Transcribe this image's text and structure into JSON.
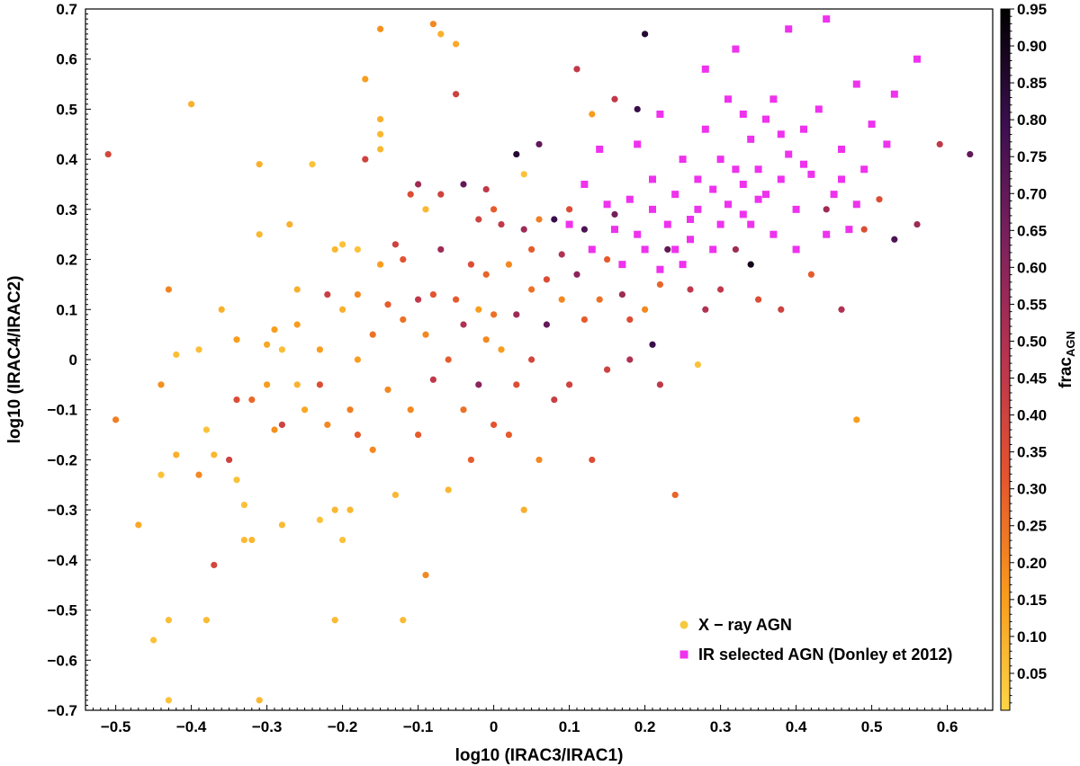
{
  "chart_data": {
    "type": "scatter",
    "title": "",
    "xlabel": "log10 (IRAC3/IRAC1)",
    "ylabel": "log10 (IRAC4/IRAC2)",
    "xlim": [
      -0.54,
      0.66
    ],
    "ylim": [
      -0.7,
      0.7
    ],
    "xticks": [
      "−0.5",
      "−0.4",
      "−0.3",
      "−0.2",
      "−0.1",
      "0",
      "0.1",
      "0.2",
      "0.3",
      "0.4",
      "0.5",
      "0.6"
    ],
    "yticks": [
      "0.7",
      "0.6",
      "0.5",
      "0.4",
      "0.3",
      "0.2",
      "0.1",
      "0",
      "−0.1",
      "−0.2",
      "−0.3",
      "−0.4",
      "−0.5",
      "−0.6",
      "−0.7"
    ],
    "grid": false,
    "legend_position": "bottom-right",
    "colorbar": {
      "label_main": "frac",
      "label_sub": "AGN",
      "range": [
        0.0,
        0.95
      ],
      "ticks": [
        "0.95",
        "0.90",
        "0.85",
        "0.80",
        "0.75",
        "0.70",
        "0.65",
        "0.60",
        "0.55",
        "0.50",
        "0.45",
        "0.40",
        "0.35",
        "0.30",
        "0.25",
        "0.20",
        "0.15",
        "0.10",
        "0.05"
      ],
      "colormap": [
        "#fcd547",
        "#f89a1c",
        "#e4542e",
        "#b9344f",
        "#7d215e",
        "#3c0f4f",
        "#000000"
      ]
    },
    "series": [
      {
        "name": "X − ray AGN",
        "marker": "circle",
        "color": "#f5c940",
        "points": [
          [
            -0.51,
            0.41,
            0.38
          ],
          [
            -0.5,
            -0.12,
            0.22
          ],
          [
            -0.47,
            -0.33,
            0.12
          ],
          [
            -0.45,
            -0.56,
            0.05
          ],
          [
            -0.44,
            -0.23,
            0.05
          ],
          [
            -0.43,
            -0.52,
            0.06
          ],
          [
            -0.43,
            -0.68,
            0.05
          ],
          [
            -0.42,
            0.01,
            0.06
          ],
          [
            -0.42,
            -0.19,
            0.1
          ],
          [
            -0.43,
            0.14,
            0.21
          ],
          [
            -0.44,
            -0.05,
            0.18
          ],
          [
            -0.4,
            0.51,
            0.1
          ],
          [
            -0.39,
            0.02,
            0.06
          ],
          [
            -0.39,
            -0.23,
            0.2
          ],
          [
            -0.38,
            -0.14,
            0.05
          ],
          [
            -0.37,
            -0.19,
            0.08
          ],
          [
            -0.38,
            -0.52,
            0.07
          ],
          [
            -0.37,
            -0.41,
            0.38
          ],
          [
            -0.36,
            0.1,
            0.1
          ],
          [
            -0.35,
            -0.2,
            0.4
          ],
          [
            -0.34,
            -0.08,
            0.35
          ],
          [
            -0.34,
            -0.24,
            0.05
          ],
          [
            -0.34,
            0.04,
            0.15
          ],
          [
            -0.33,
            -0.36,
            0.07
          ],
          [
            -0.33,
            -0.29,
            0.05
          ],
          [
            -0.32,
            -0.36,
            0.08
          ],
          [
            -0.31,
            0.25,
            0.08
          ],
          [
            -0.31,
            0.39,
            0.1
          ],
          [
            -0.31,
            -0.68,
            0.08
          ],
          [
            -0.32,
            -0.08,
            0.27
          ],
          [
            -0.3,
            -0.05,
            0.15
          ],
          [
            -0.3,
            0.03,
            0.12
          ],
          [
            -0.29,
            -0.14,
            0.18
          ],
          [
            -0.29,
            0.06,
            0.15
          ],
          [
            -0.28,
            -0.13,
            0.4
          ],
          [
            -0.28,
            -0.33,
            0.07
          ],
          [
            -0.28,
            0.02,
            0.06
          ],
          [
            -0.27,
            0.27,
            0.1
          ],
          [
            -0.26,
            0.07,
            0.15
          ],
          [
            -0.26,
            -0.05,
            0.09
          ],
          [
            -0.26,
            0.14,
            0.1
          ],
          [
            -0.25,
            -0.1,
            0.12
          ],
          [
            -0.24,
            0.39,
            0.05
          ],
          [
            -0.23,
            -0.32,
            0.05
          ],
          [
            -0.23,
            0.02,
            0.15
          ],
          [
            -0.23,
            -0.05,
            0.35
          ],
          [
            -0.22,
            0.13,
            0.42
          ],
          [
            -0.22,
            -0.13,
            0.2
          ],
          [
            -0.21,
            0.22,
            0.08
          ],
          [
            -0.21,
            -0.3,
            0.08
          ],
          [
            -0.21,
            -0.52,
            0.07
          ],
          [
            -0.2,
            0.23,
            0.05
          ],
          [
            -0.2,
            0.1,
            0.1
          ],
          [
            -0.2,
            -0.36,
            0.05
          ],
          [
            -0.19,
            -0.1,
            0.22
          ],
          [
            -0.19,
            -0.3,
            0.08
          ],
          [
            -0.18,
            0.22,
            0.05
          ],
          [
            -0.18,
            0.13,
            0.2
          ],
          [
            -0.18,
            0.0,
            0.15
          ],
          [
            -0.18,
            -0.15,
            0.3
          ],
          [
            -0.17,
            0.56,
            0.15
          ],
          [
            -0.17,
            0.4,
            0.4
          ],
          [
            -0.16,
            0.05,
            0.25
          ],
          [
            -0.16,
            -0.18,
            0.2
          ],
          [
            -0.15,
            0.66,
            0.18
          ],
          [
            -0.15,
            0.45,
            0.08
          ],
          [
            -0.15,
            0.48,
            0.1
          ],
          [
            -0.15,
            0.42,
            0.08
          ],
          [
            -0.15,
            0.19,
            0.15
          ],
          [
            -0.14,
            0.11,
            0.3
          ],
          [
            -0.14,
            -0.06,
            0.2
          ],
          [
            -0.13,
            0.23,
            0.4
          ],
          [
            -0.13,
            -0.27,
            0.08
          ],
          [
            -0.12,
            0.2,
            0.32
          ],
          [
            -0.12,
            -0.52,
            0.07
          ],
          [
            -0.12,
            0.08,
            0.25
          ],
          [
            -0.11,
            0.33,
            0.35
          ],
          [
            -0.11,
            -0.1,
            0.2
          ],
          [
            -0.1,
            0.35,
            0.55
          ],
          [
            -0.1,
            0.12,
            0.45
          ],
          [
            -0.1,
            -0.15,
            0.3
          ],
          [
            -0.09,
            0.3,
            0.08
          ],
          [
            -0.09,
            -0.43,
            0.2
          ],
          [
            -0.09,
            0.05,
            0.2
          ],
          [
            -0.08,
            0.67,
            0.2
          ],
          [
            -0.08,
            0.13,
            0.32
          ],
          [
            -0.08,
            -0.04,
            0.45
          ],
          [
            -0.07,
            0.65,
            0.1
          ],
          [
            -0.07,
            0.33,
            0.4
          ],
          [
            -0.07,
            0.22,
            0.55
          ],
          [
            -0.06,
            0.0,
            0.3
          ],
          [
            -0.06,
            -0.26,
            0.08
          ],
          [
            -0.05,
            0.63,
            0.12
          ],
          [
            -0.05,
            0.53,
            0.4
          ],
          [
            -0.05,
            0.12,
            0.3
          ],
          [
            -0.04,
            0.35,
            0.7
          ],
          [
            -0.04,
            0.07,
            0.5
          ],
          [
            -0.04,
            -0.1,
            0.25
          ],
          [
            -0.03,
            0.19,
            0.35
          ],
          [
            -0.03,
            -0.2,
            0.3
          ],
          [
            -0.02,
            0.28,
            0.4
          ],
          [
            -0.02,
            0.1,
            0.15
          ],
          [
            -0.02,
            -0.05,
            0.6
          ],
          [
            -0.01,
            0.34,
            0.45
          ],
          [
            -0.01,
            0.17,
            0.28
          ],
          [
            -0.01,
            0.04,
            0.2
          ],
          [
            0.0,
            0.3,
            0.3
          ],
          [
            0.0,
            0.09,
            0.25
          ],
          [
            0.0,
            -0.13,
            0.32
          ],
          [
            0.01,
            0.27,
            0.45
          ],
          [
            0.01,
            0.02,
            0.15
          ],
          [
            0.02,
            0.19,
            0.2
          ],
          [
            0.02,
            -0.15,
            0.3
          ],
          [
            0.03,
            0.41,
            0.85
          ],
          [
            0.03,
            0.09,
            0.55
          ],
          [
            0.03,
            -0.05,
            0.35
          ],
          [
            0.04,
            0.37,
            0.05
          ],
          [
            0.04,
            0.26,
            0.55
          ],
          [
            0.04,
            -0.3,
            0.1
          ],
          [
            0.05,
            0.22,
            0.3
          ],
          [
            0.05,
            0.14,
            0.25
          ],
          [
            0.05,
            0.0,
            0.38
          ],
          [
            0.06,
            0.43,
            0.7
          ],
          [
            0.06,
            0.28,
            0.22
          ],
          [
            0.06,
            -0.2,
            0.2
          ],
          [
            0.07,
            0.16,
            0.35
          ],
          [
            0.07,
            0.07,
            0.7
          ],
          [
            0.08,
            0.28,
            0.8
          ],
          [
            0.08,
            -0.08,
            0.42
          ],
          [
            0.09,
            0.21,
            0.5
          ],
          [
            0.09,
            0.12,
            0.2
          ],
          [
            0.1,
            0.3,
            0.35
          ],
          [
            0.1,
            -0.05,
            0.4
          ],
          [
            0.11,
            0.58,
            0.45
          ],
          [
            0.11,
            0.17,
            0.6
          ],
          [
            0.12,
            0.26,
            0.75
          ],
          [
            0.12,
            0.08,
            0.3
          ],
          [
            0.13,
            0.49,
            0.15
          ],
          [
            0.13,
            -0.2,
            0.35
          ],
          [
            0.14,
            0.12,
            0.25
          ],
          [
            0.15,
            0.2,
            0.3
          ],
          [
            0.15,
            -0.02,
            0.4
          ],
          [
            0.16,
            0.52,
            0.45
          ],
          [
            0.16,
            0.29,
            0.65
          ],
          [
            0.17,
            0.13,
            0.55
          ],
          [
            0.18,
            0.08,
            0.35
          ],
          [
            0.18,
            0.0,
            0.5
          ],
          [
            0.19,
            0.5,
            0.8
          ],
          [
            0.2,
            0.65,
            0.85
          ],
          [
            0.2,
            0.1,
            0.2
          ],
          [
            0.21,
            0.03,
            0.8
          ],
          [
            0.22,
            0.15,
            0.28
          ],
          [
            0.22,
            -0.05,
            0.45
          ],
          [
            0.23,
            0.22,
            0.7
          ],
          [
            0.24,
            -0.27,
            0.28
          ],
          [
            0.26,
            0.14,
            0.45
          ],
          [
            0.28,
            0.1,
            0.5
          ],
          [
            0.3,
            0.14,
            0.45
          ],
          [
            0.32,
            0.22,
            0.55
          ],
          [
            0.34,
            0.19,
            0.9
          ],
          [
            0.35,
            0.12,
            0.35
          ],
          [
            0.38,
            0.1,
            0.4
          ],
          [
            0.4,
            0.22,
            0.6
          ],
          [
            0.42,
            0.17,
            0.3
          ],
          [
            0.44,
            0.3,
            0.55
          ],
          [
            0.46,
            0.1,
            0.5
          ],
          [
            0.48,
            -0.12,
            0.15
          ],
          [
            0.49,
            0.26,
            0.35
          ],
          [
            0.51,
            0.32,
            0.35
          ],
          [
            0.53,
            0.24,
            0.75
          ],
          [
            0.56,
            0.27,
            0.55
          ],
          [
            0.59,
            0.43,
            0.45
          ],
          [
            0.63,
            0.41,
            0.7
          ],
          [
            0.27,
            -0.01,
            0.05
          ]
        ]
      },
      {
        "name": "IR selected AGN (Donley et 2012)",
        "marker": "square",
        "color": "#ee32ee",
        "points": [
          [
            0.1,
            0.27
          ],
          [
            0.12,
            0.35
          ],
          [
            0.14,
            0.42
          ],
          [
            0.16,
            0.26
          ],
          [
            0.18,
            0.32
          ],
          [
            0.19,
            0.43
          ],
          [
            0.2,
            0.22
          ],
          [
            0.21,
            0.36
          ],
          [
            0.22,
            0.49
          ],
          [
            0.23,
            0.27
          ],
          [
            0.24,
            0.33
          ],
          [
            0.25,
            0.4
          ],
          [
            0.26,
            0.24
          ],
          [
            0.27,
            0.3
          ],
          [
            0.28,
            0.46
          ],
          [
            0.29,
            0.34
          ],
          [
            0.3,
            0.27
          ],
          [
            0.31,
            0.52
          ],
          [
            0.32,
            0.38
          ],
          [
            0.32,
            0.62
          ],
          [
            0.33,
            0.29
          ],
          [
            0.34,
            0.44
          ],
          [
            0.35,
            0.32
          ],
          [
            0.36,
            0.48
          ],
          [
            0.37,
            0.25
          ],
          [
            0.38,
            0.36
          ],
          [
            0.39,
            0.41
          ],
          [
            0.4,
            0.3
          ],
          [
            0.41,
            0.46
          ],
          [
            0.42,
            0.37
          ],
          [
            0.43,
            0.5
          ],
          [
            0.44,
            0.68
          ],
          [
            0.45,
            0.33
          ],
          [
            0.46,
            0.42
          ],
          [
            0.47,
            0.26
          ],
          [
            0.48,
            0.55
          ],
          [
            0.49,
            0.38
          ],
          [
            0.5,
            0.47
          ],
          [
            0.52,
            0.43
          ],
          [
            0.53,
            0.53
          ],
          [
            0.56,
            0.6
          ],
          [
            0.28,
            0.58
          ],
          [
            0.39,
            0.66
          ],
          [
            0.24,
            0.22
          ],
          [
            0.26,
            0.28
          ],
          [
            0.29,
            0.22
          ],
          [
            0.31,
            0.31
          ],
          [
            0.34,
            0.27
          ],
          [
            0.36,
            0.33
          ],
          [
            0.27,
            0.36
          ],
          [
            0.3,
            0.4
          ],
          [
            0.33,
            0.35
          ],
          [
            0.35,
            0.38
          ],
          [
            0.38,
            0.45
          ],
          [
            0.41,
            0.39
          ],
          [
            0.21,
            0.3
          ],
          [
            0.19,
            0.25
          ],
          [
            0.17,
            0.19
          ],
          [
            0.15,
            0.31
          ],
          [
            0.13,
            0.22
          ],
          [
            0.22,
            0.18
          ],
          [
            0.25,
            0.19
          ],
          [
            0.4,
            0.22
          ],
          [
            0.44,
            0.25
          ],
          [
            0.46,
            0.36
          ],
          [
            0.48,
            0.31
          ],
          [
            0.33,
            0.49
          ],
          [
            0.37,
            0.52
          ]
        ]
      }
    ]
  }
}
